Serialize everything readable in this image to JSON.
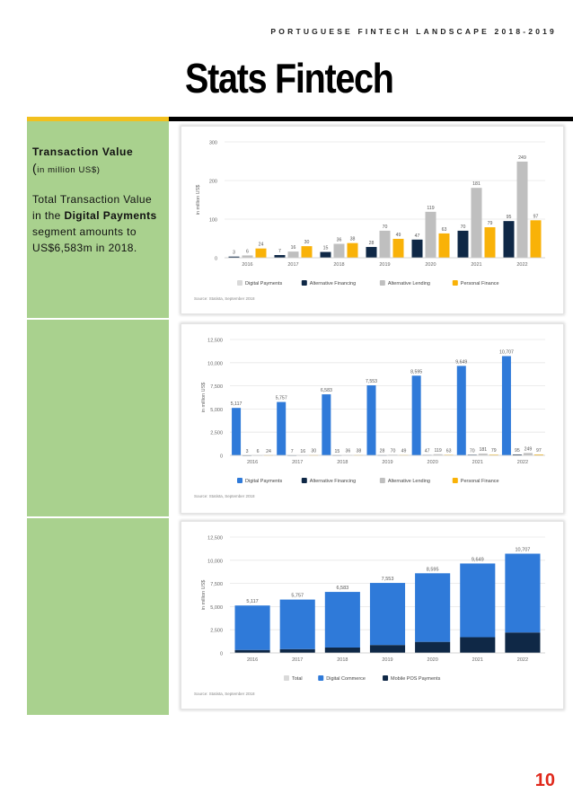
{
  "header": {
    "running_title": "PORTUGUESE FINTECH LANDSCAPE 2018-2019"
  },
  "title": "Stats Fintech",
  "sidebar": {
    "heading": "Transaction Value",
    "unit_open": "(",
    "unit_text": "in million US$)",
    "body_prefix": "Total Transaction Value in the ",
    "body_bold": "Digital Payments",
    "body_suffix": " segment amounts to US$6,583m in 2018."
  },
  "page_number": "10",
  "chart_data": [
    {
      "type": "bar",
      "ylabel": "in million US$",
      "ylim": [
        0,
        300
      ],
      "yticks": [
        "0",
        "100",
        "200",
        "300"
      ],
      "categories": [
        "2016",
        "2017",
        "2018",
        "2019",
        "2020",
        "2021",
        "2022"
      ],
      "series": [
        {
          "name": "Digital Payments",
          "color": "#d9d9d9",
          "values": [
            null,
            null,
            null,
            null,
            null,
            null,
            null
          ]
        },
        {
          "name": "Alternative Financing",
          "color": "#0f2846",
          "values": [
            3,
            7,
            15,
            28,
            47,
            70,
            95
          ]
        },
        {
          "name": "Alternative Lending",
          "color": "#bfbfbf",
          "values": [
            6,
            16,
            36,
            70,
            119,
            181,
            249
          ]
        },
        {
          "name": "Personal Finance",
          "color": "#f9b208",
          "values": [
            24,
            30,
            38,
            49,
            63,
            79,
            97
          ]
        }
      ],
      "grid": true,
      "legend": "bottom",
      "source": "Source: Statista, September 2018"
    },
    {
      "type": "bar",
      "ylabel": "in million US$",
      "ylim": [
        0,
        12500
      ],
      "yticks": [
        "0",
        "2,500",
        "5,000",
        "7,500",
        "10,000",
        "12,500"
      ],
      "categories": [
        "2016",
        "2017",
        "2018",
        "2019",
        "2020",
        "2021",
        "2022"
      ],
      "series": [
        {
          "name": "Digital Payments",
          "color": "#2f7ad9",
          "values": [
            5117,
            5757,
            6583,
            7553,
            8595,
            9649,
            10707
          ],
          "labels": [
            "5,117",
            "5,757",
            "6,583",
            "7,553",
            "8,595",
            "9,649",
            "10,707"
          ]
        },
        {
          "name": "Alternative Financing",
          "color": "#0f2846",
          "values": [
            3,
            7,
            15,
            28,
            47,
            70,
            95
          ]
        },
        {
          "name": "Alternative Lending",
          "color": "#bfbfbf",
          "values": [
            6,
            16,
            36,
            70,
            119,
            181,
            249
          ]
        },
        {
          "name": "Personal Finance",
          "color": "#f9b208",
          "values": [
            24,
            30,
            38,
            49,
            63,
            79,
            97
          ]
        }
      ],
      "grid": true,
      "legend": "bottom",
      "source": "Source: Statista, September 2018"
    },
    {
      "type": "bar",
      "stacked": true,
      "ylabel": "in million US$",
      "ylim": [
        0,
        12500
      ],
      "yticks": [
        "0",
        "2,500",
        "5,000",
        "7,500",
        "10,000",
        "12,500"
      ],
      "categories": [
        "2016",
        "2017",
        "2018",
        "2019",
        "2020",
        "2021",
        "2022"
      ],
      "totals": [
        5117,
        5757,
        6583,
        7553,
        8595,
        9649,
        10707
      ],
      "total_labels": [
        "5,117",
        "5,757",
        "6,583",
        "7,553",
        "8,595",
        "9,649",
        "10,707"
      ],
      "series": [
        {
          "name": "Total",
          "color": "#d9d9d9",
          "values": [
            null,
            null,
            null,
            null,
            null,
            null,
            null
          ]
        },
        {
          "name": "Digital Commerce",
          "color": "#2f7ad9",
          "values": [
            4800,
            5350,
            6000,
            6700,
            7400,
            7950,
            8500
          ]
        },
        {
          "name": "Mobile POS Payments",
          "color": "#0f2846",
          "values": [
            317,
            407,
            583,
            853,
            1195,
            1699,
            2207
          ]
        }
      ],
      "grid": true,
      "legend": "bottom",
      "source": "Source: Statista, September 2018"
    }
  ]
}
